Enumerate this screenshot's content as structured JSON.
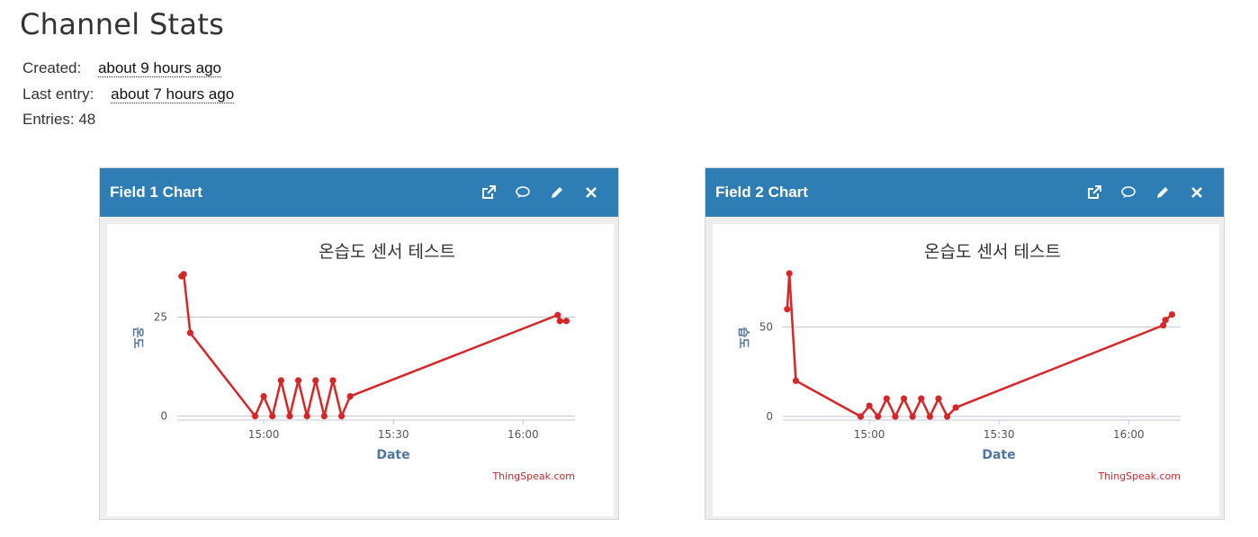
{
  "page": {
    "title": "Channel Stats",
    "created_label": "Created:",
    "created_value": "about 9 hours ago",
    "last_entry_label": "Last entry:",
    "last_entry_value": "about 7 hours ago",
    "entries_text": "Entries: 48"
  },
  "widgets": [
    {
      "title": "Field 1 Chart"
    },
    {
      "title": "Field 2 Chart"
    }
  ],
  "tool_icons": [
    "external-link-icon",
    "comment-icon",
    "pencil-icon",
    "close-icon"
  ],
  "colors": {
    "header": "#2e7db5",
    "series": "#d62728",
    "title": "#333333",
    "axis_title": "#4d759e"
  },
  "chart_data": [
    {
      "type": "line",
      "title": "온습도 센서 테스트",
      "xlabel": "Date",
      "ylabel": "온도",
      "credit": "ThingSpeak.com",
      "x_ticks": [
        "15:00",
        "15:30",
        "16:00"
      ],
      "y_ticks": [
        0,
        25
      ],
      "ylim": [
        -1,
        36
      ],
      "grid": true,
      "series": [
        {
          "x": [
            "14:41",
            "14:41:30",
            "14:43",
            "14:58",
            "15:00",
            "15:02",
            "15:04",
            "15:06",
            "15:08",
            "15:10",
            "15:12",
            "15:14",
            "15:16",
            "15:18",
            "15:20",
            "16:08",
            "16:08:30",
            "16:10"
          ],
          "values": [
            35.3,
            35.8,
            21,
            0,
            5,
            0,
            9,
            0,
            9,
            0,
            9,
            0,
            9,
            0,
            5,
            25.5,
            24,
            24
          ]
        }
      ]
    },
    {
      "type": "line",
      "title": "온습도 센서 테스트",
      "xlabel": "Date",
      "ylabel": "습도",
      "credit": "ThingSpeak.com",
      "x_ticks": [
        "15:00",
        "15:30",
        "16:00"
      ],
      "y_ticks": [
        0,
        50
      ],
      "ylim": [
        -2,
        80
      ],
      "grid": true,
      "series": [
        {
          "x": [
            "14:41",
            "14:41:30",
            "14:43",
            "14:58",
            "15:00",
            "15:02",
            "15:04",
            "15:06",
            "15:08",
            "15:10",
            "15:12",
            "15:14",
            "15:16",
            "15:18",
            "15:20",
            "16:08",
            "16:08:30",
            "16:10"
          ],
          "values": [
            60,
            80,
            20,
            0,
            6,
            0,
            10,
            0,
            10,
            0,
            10,
            0,
            10,
            0,
            5,
            51,
            54,
            57
          ]
        }
      ]
    }
  ]
}
